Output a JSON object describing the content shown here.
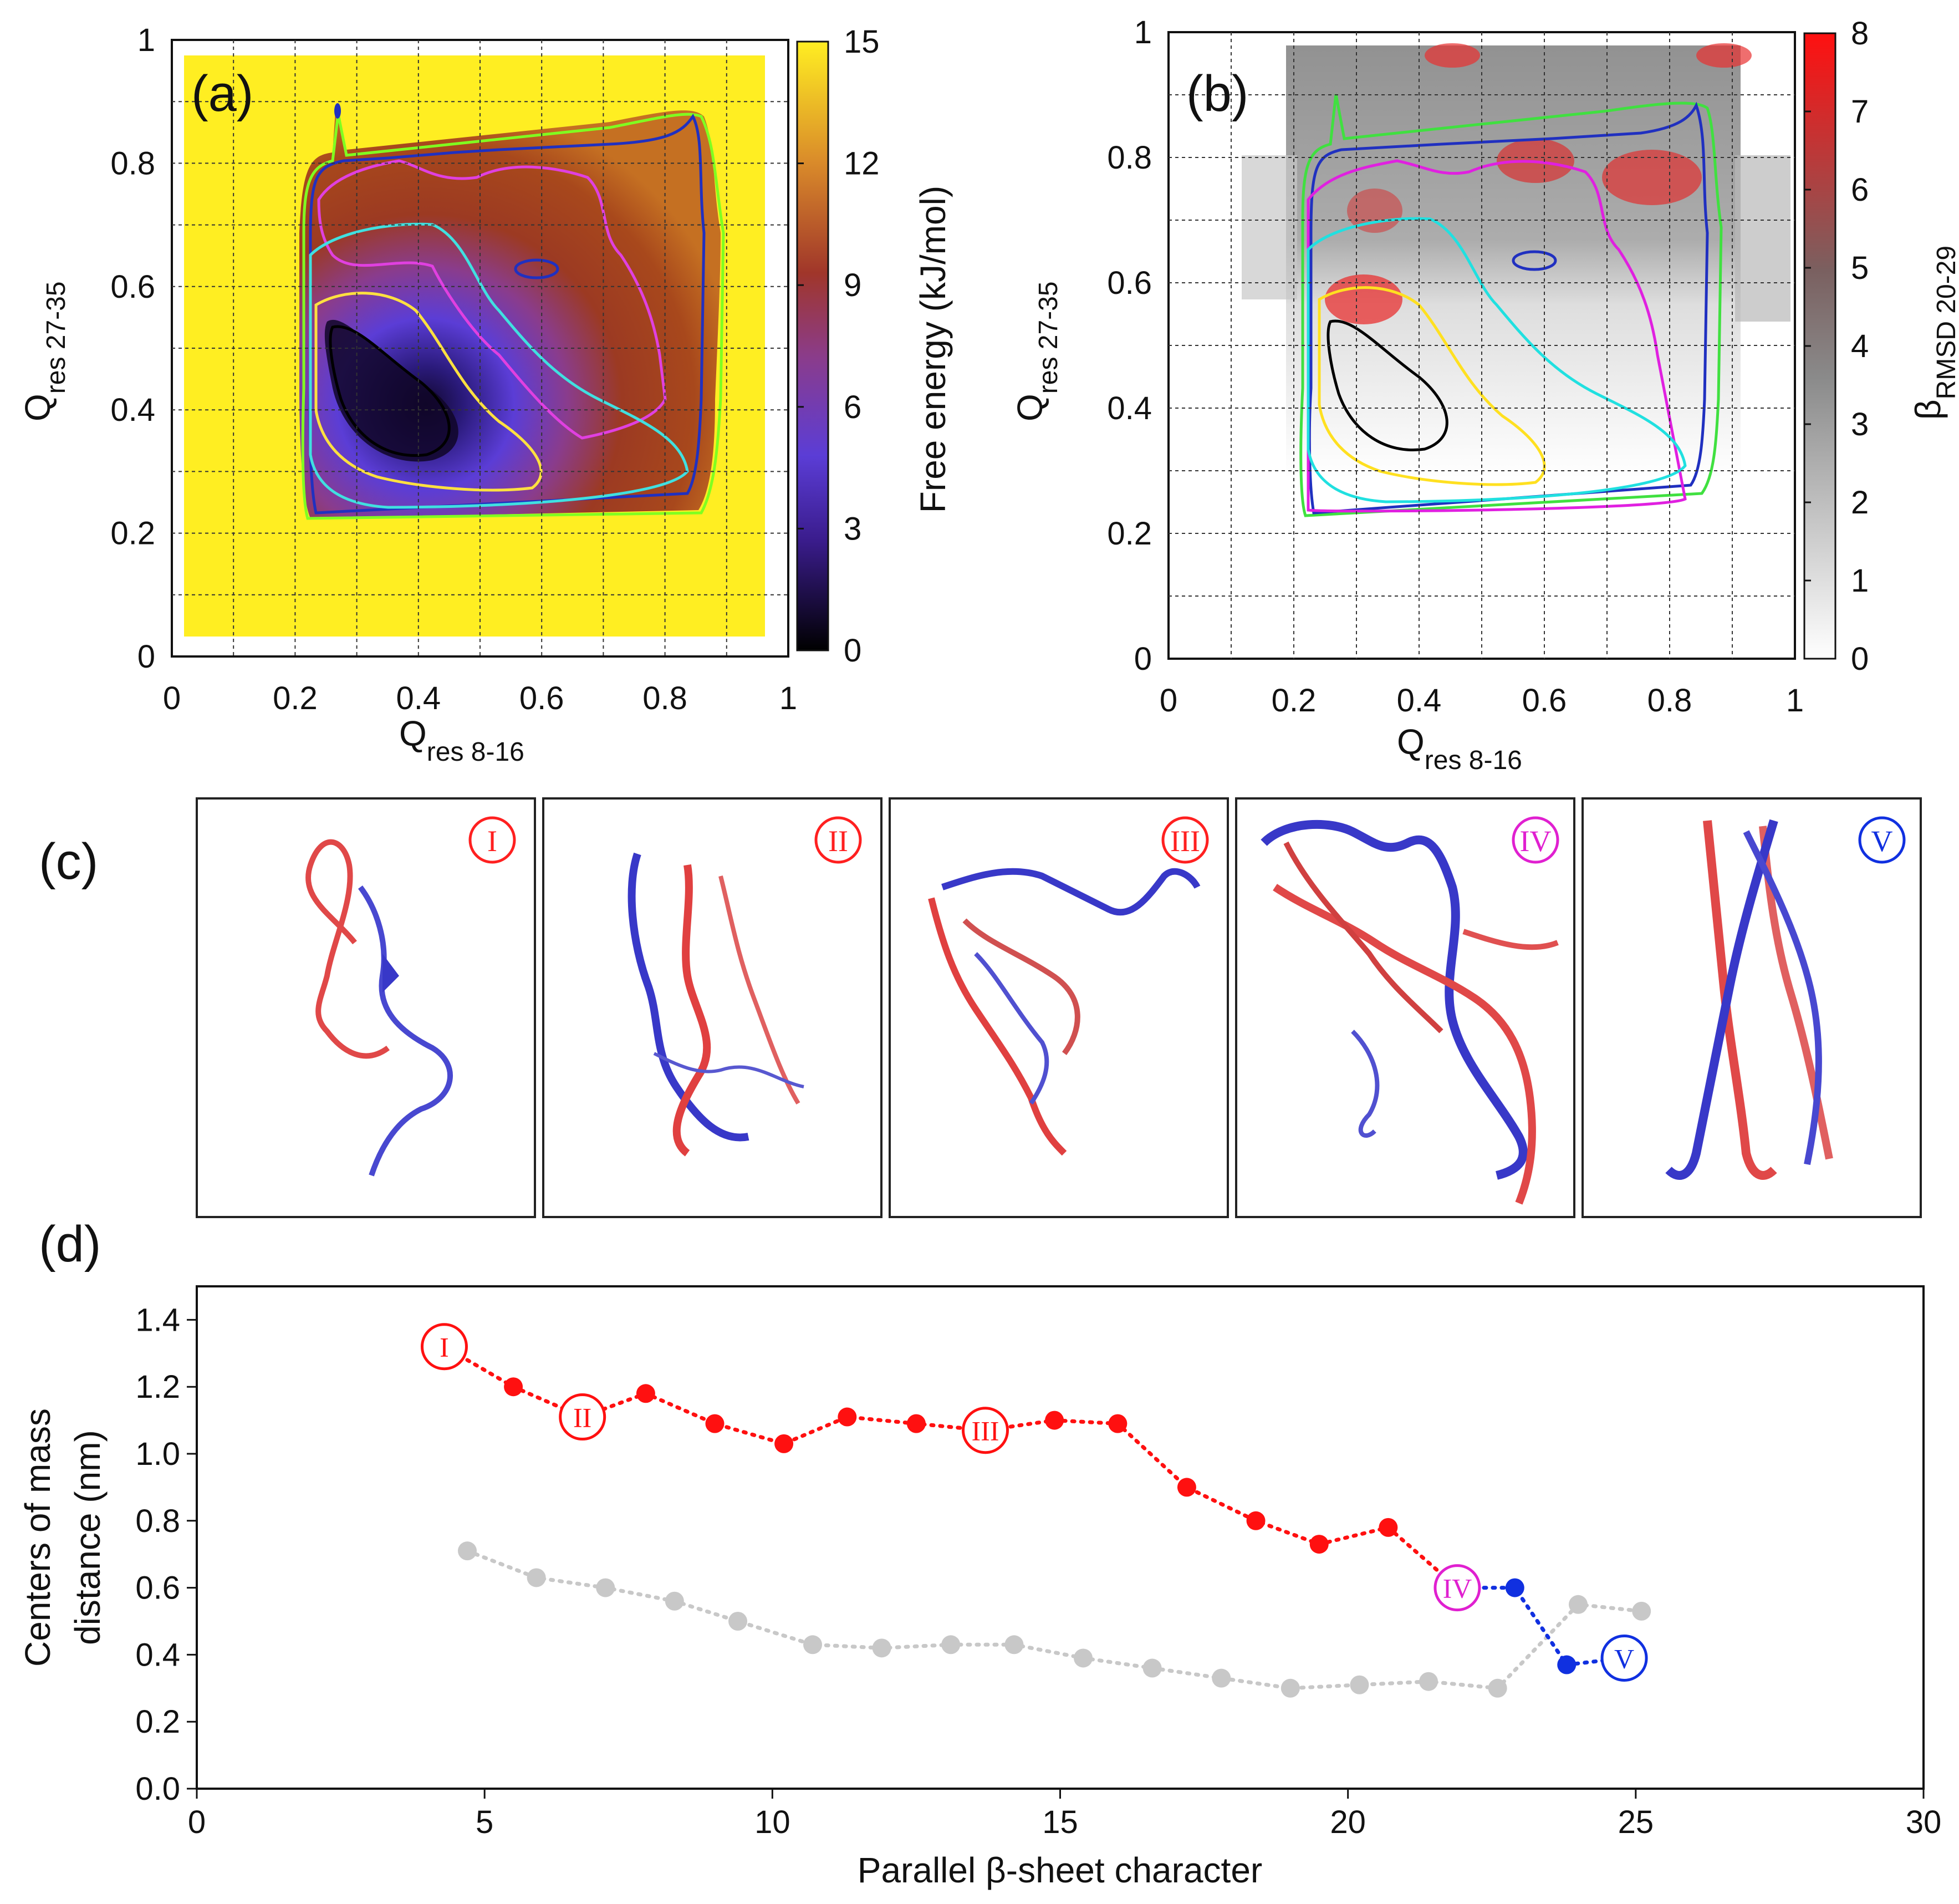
{
  "panels": {
    "a": {
      "label": "(a)",
      "xlabel_main": "Q",
      "xlabel_sub": "res 8-16",
      "ylabel_main": "Q",
      "ylabel_sub": "res 27-35",
      "x_ticks": [
        "0",
        "0.2",
        "0.4",
        "0.6",
        "0.8",
        "1"
      ],
      "y_ticks": [
        "0",
        "0.2",
        "0.4",
        "0.6",
        "0.8",
        "1"
      ],
      "colorbar_ticks": [
        "0",
        "3",
        "6",
        "9",
        "12",
        "15"
      ],
      "colorbar_label": "Free energy (kJ/mol)",
      "colors": {
        "low": "#000000",
        "mid1": "#5b3dd6",
        "mid2": "#a0362a",
        "high": "#ffee22"
      }
    },
    "b": {
      "label": "(b)",
      "xlabel_main": "Q",
      "xlabel_sub": "res 8-16",
      "ylabel_main": "Q",
      "ylabel_sub": "res 27-35",
      "x_ticks": [
        "0",
        "0.2",
        "0.4",
        "0.6",
        "0.8",
        "1"
      ],
      "y_ticks": [
        "0",
        "0.2",
        "0.4",
        "0.6",
        "0.8",
        "1"
      ],
      "colorbar_ticks": [
        "0",
        "1",
        "2",
        "3",
        "4",
        "5",
        "6",
        "7",
        "8"
      ],
      "colorbar_label_main": "β",
      "colorbar_label_sub": "RMSD 20-29",
      "colors": {
        "low": "#ffffff",
        "mid": "#888888",
        "high": "#ff1010"
      }
    },
    "c": {
      "label": "(c)",
      "structures": [
        {
          "id": "I",
          "color": "#ff2020"
        },
        {
          "id": "II",
          "color": "#ff2020"
        },
        {
          "id": "III",
          "color": "#ff2020"
        },
        {
          "id": "IV",
          "color": "#e020d0"
        },
        {
          "id": "V",
          "color": "#1030e0"
        }
      ]
    },
    "d": {
      "label": "(d)"
    }
  },
  "chart_data": {
    "type": "line",
    "xlabel": "Parallel β-sheet character",
    "ylabel_line1": "Centers of mass",
    "ylabel_line2": "distance (nm)",
    "xlim": [
      0,
      30
    ],
    "ylim": [
      0.0,
      1.5
    ],
    "x_ticks": [
      0,
      5,
      10,
      15,
      20,
      25,
      30
    ],
    "y_ticks": [
      0.0,
      0.2,
      0.4,
      0.6,
      0.8,
      1.0,
      1.2,
      1.4
    ],
    "y_tick_labels": [
      "0.0",
      "0.2",
      "0.4",
      "0.6",
      "0.8",
      "1.0",
      "1.2",
      "1.4"
    ],
    "series": [
      {
        "name": "gray",
        "color": "#c8c8c8",
        "x": [
          4.7,
          5.9,
          7.1,
          8.3,
          9.4,
          10.7,
          11.9,
          13.1,
          14.2,
          15.4,
          16.6,
          17.8,
          19.0,
          20.2,
          21.4,
          22.6,
          24.0,
          25.1
        ],
        "y": [
          0.71,
          0.63,
          0.6,
          0.56,
          0.5,
          0.43,
          0.42,
          0.43,
          0.43,
          0.39,
          0.36,
          0.33,
          0.3,
          0.31,
          0.32,
          0.3,
          0.55,
          0.53
        ]
      },
      {
        "name": "red",
        "color": "#ff1010",
        "x": [
          4.3,
          5.5,
          6.7,
          7.8,
          9.0,
          10.2,
          11.3,
          12.5,
          13.7,
          14.9,
          16.0,
          17.2,
          18.4,
          19.5,
          20.7,
          21.9
        ],
        "y": [
          1.32,
          1.2,
          1.11,
          1.18,
          1.09,
          1.03,
          1.11,
          1.09,
          1.07,
          1.1,
          1.09,
          0.9,
          0.8,
          0.73,
          0.78,
          0.6
        ]
      },
      {
        "name": "blue",
        "color": "#1030e0",
        "x": [
          21.9,
          22.9,
          23.8,
          24.8
        ],
        "y": [
          0.6,
          0.6,
          0.37,
          0.39
        ]
      }
    ],
    "annotations": [
      {
        "text": "I",
        "x": 4.3,
        "y": 1.32,
        "color": "#ff1010"
      },
      {
        "text": "II",
        "x": 6.7,
        "y": 1.11,
        "color": "#ff1010"
      },
      {
        "text": "III",
        "x": 13.7,
        "y": 1.07,
        "color": "#ff1010"
      },
      {
        "text": "IV",
        "x": 21.9,
        "y": 0.6,
        "color": "#e020d0"
      },
      {
        "text": "V",
        "x": 24.8,
        "y": 0.39,
        "color": "#1030e0"
      }
    ]
  }
}
